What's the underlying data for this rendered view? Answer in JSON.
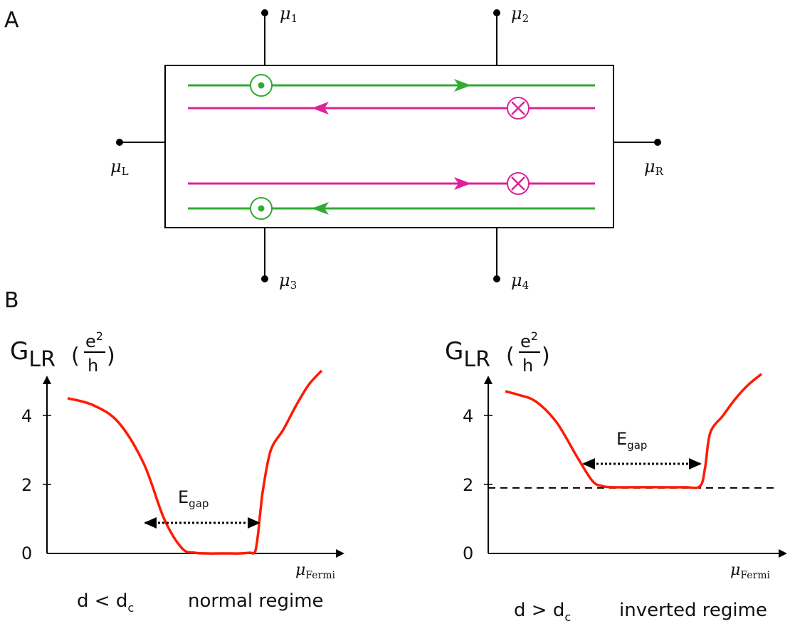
{
  "panel_a": {
    "label": "A",
    "mu_symbol": "μ",
    "mu_left_sub": "L",
    "mu_right_sub": "R",
    "mu_1_sub": "1",
    "mu_2_sub": "2",
    "mu_3_sub": "3",
    "mu_4_sub": "4",
    "spin_up_color": "#33aa33",
    "spin_down_color": "#dd2299"
  },
  "panel_b": {
    "label": "B",
    "curve_color": "#ff1a00",
    "ylabel_main": "G",
    "ylabel_sub": "LR",
    "ylabel_paren_open": "(",
    "ylabel_paren_close": ")",
    "ylabel_frac_num": "e",
    "ylabel_frac_exp": "2",
    "ylabel_frac_den": "h",
    "xlabel_mu": "μ",
    "xlabel_sub": "Fermi",
    "gap_label": "E",
    "gap_label_sub": "gap",
    "left": {
      "yticks": [
        "0",
        "2",
        "4"
      ],
      "cond_d": "d < d",
      "cond_sub": "c",
      "regime": "normal regime"
    },
    "right": {
      "yticks": [
        "0",
        "2",
        "4"
      ],
      "cond_d": "d > d",
      "cond_sub": "c",
      "regime": "inverted regime"
    }
  },
  "chart_data": [
    {
      "type": "line",
      "ylabel": "G_LR (e^2/h)",
      "xlabel": "μ_Fermi",
      "ylim": [
        0,
        4.8
      ],
      "yticks": [
        0,
        2,
        4
      ],
      "regime": "normal regime",
      "series": [
        {
          "x": [
            0.0,
            0.1,
            0.2,
            0.3,
            0.38,
            0.45,
            0.5,
            0.55,
            0.62,
            0.68,
            0.72,
            0.73,
            0.74,
            0.75,
            0.76,
            0.77,
            0.8,
            0.85,
            0.9,
            0.95,
            1.0
          ],
          "y": [
            4.5,
            4.3,
            3.8,
            2.6,
            1.0,
            0.15,
            0.02,
            0.0,
            0.0,
            0.0,
            0.02,
            0.0,
            0.1,
            0.6,
            1.3,
            1.9,
            3.0,
            3.6,
            4.3,
            4.9,
            5.3
          ]
        }
      ]
    },
    {
      "type": "line",
      "ylabel": "G_LR (e^2/h)",
      "xlabel": "μ_Fermi",
      "ylim": [
        0,
        4.8
      ],
      "yticks": [
        0,
        2,
        4
      ],
      "regime": "inverted regime",
      "dashed_baseline": 1.9,
      "series": [
        {
          "x": [
            0.0,
            0.05,
            0.12,
            0.2,
            0.28,
            0.34,
            0.38,
            0.42,
            0.5,
            0.6,
            0.7,
            0.76,
            0.78,
            0.8,
            0.85,
            0.9,
            0.95,
            1.0
          ],
          "y": [
            4.7,
            4.6,
            4.4,
            3.8,
            2.8,
            2.1,
            1.95,
            1.92,
            1.92,
            1.92,
            1.92,
            1.95,
            2.5,
            3.5,
            4.0,
            4.5,
            4.9,
            5.2
          ]
        }
      ]
    }
  ]
}
